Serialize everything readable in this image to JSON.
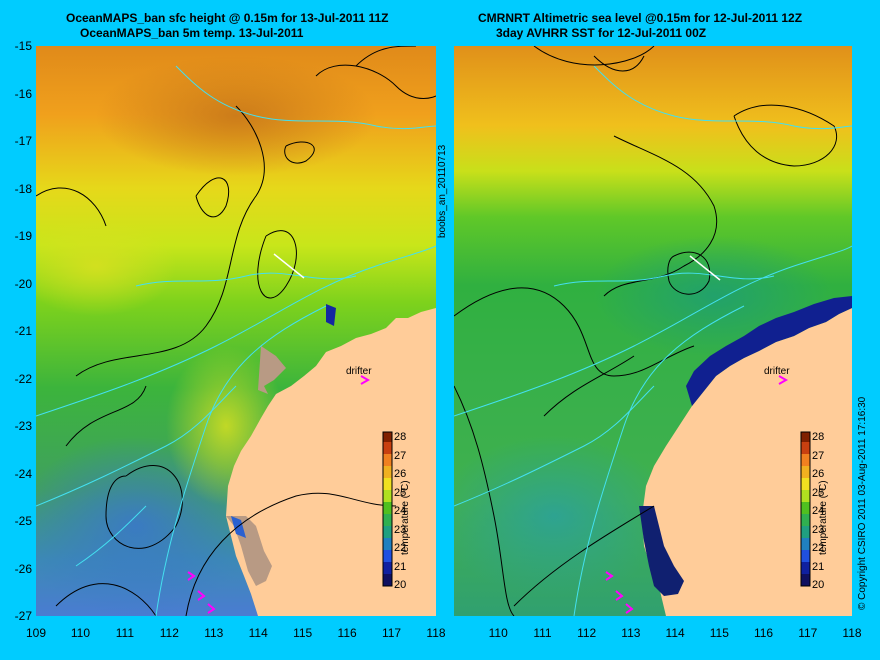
{
  "left_panel": {
    "title_line1": "OceanMAPS_ban sfc height @ 0.15m for 13-Jul-2011 11Z",
    "title_line2": "OceanMAPS_ban 5m temp. 13-Jul-2011",
    "drifter_label": "drifter",
    "colorbar": {
      "label": "temperature (°C)",
      "ticks": [
        "28",
        "27",
        "26",
        "25",
        "24",
        "23",
        "22",
        "21",
        "20"
      ]
    }
  },
  "right_panel": {
    "title_line1": "CMRNRT Altimetric sea level  @0.15m  for 12-Jul-2011 12Z",
    "title_line2": "3day AVHRR SST for 12-Jul-2011 00Z",
    "drifter_label": "drifter",
    "colorbar": {
      "label": "temperature (°C)",
      "ticks": [
        "28",
        "27",
        "26",
        "25",
        "24",
        "23",
        "22",
        "21",
        "20"
      ]
    }
  },
  "axes": {
    "y_ticks": [
      "-15",
      "-16",
      "-17",
      "-18",
      "-19",
      "-20",
      "-21",
      "-22",
      "-23",
      "-24",
      "-25",
      "-26",
      "-27"
    ],
    "left_x_ticks": [
      "109",
      "110",
      "111",
      "112",
      "113",
      "114",
      "115",
      "116",
      "117",
      "118"
    ],
    "right_x_ticks": [
      "110",
      "111",
      "112",
      "113",
      "114",
      "115",
      "116",
      "117",
      "118"
    ]
  },
  "side_id": "boobs_an_20110713",
  "copyright": "© Copyright CSIRO 2011  03-Aug-2011 17:16:30",
  "colors": {
    "background": "#00ccff",
    "land": "#ffcc99",
    "drifter": "#ff00ff",
    "contour": "#000000",
    "isobath": "#33ddee"
  }
}
